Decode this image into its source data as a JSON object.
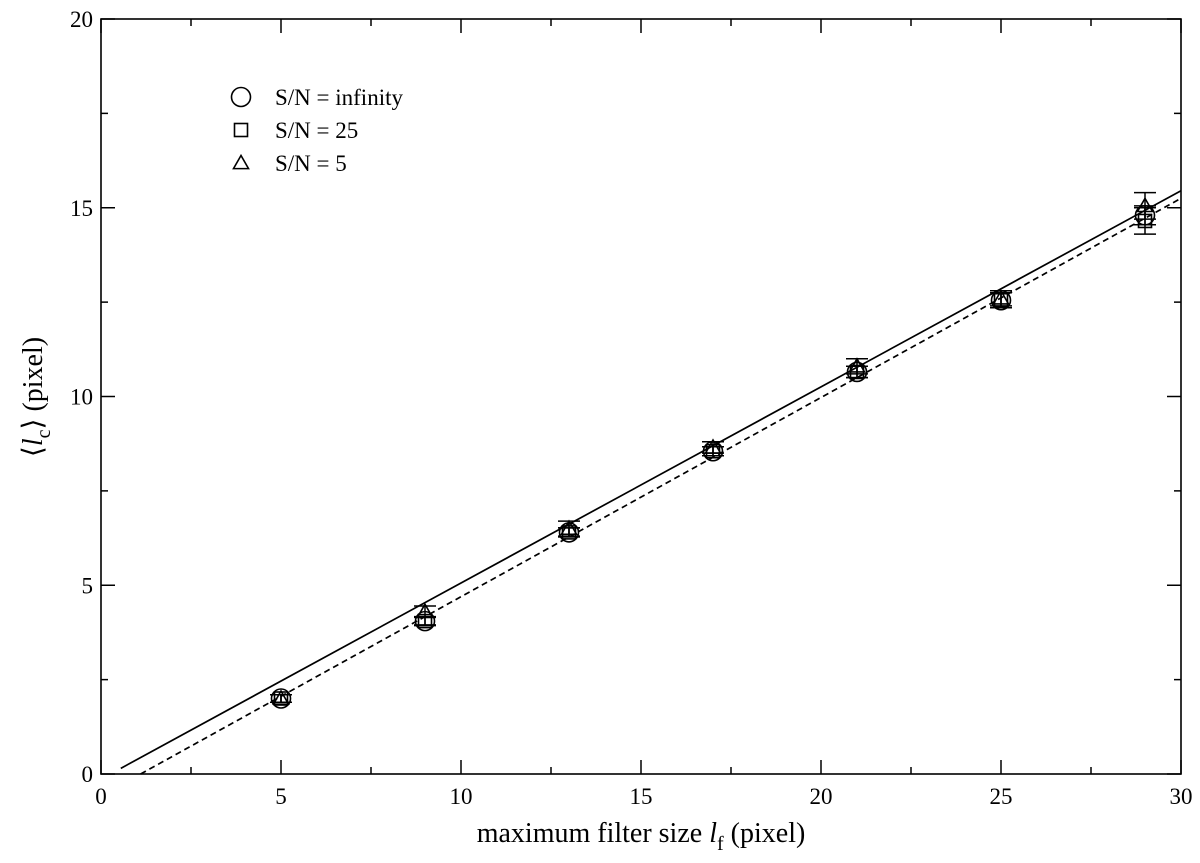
{
  "chart_data": {
    "type": "scatter",
    "xlabel": {
      "main": "maximum filter size ",
      "var": "l",
      "sub": "f",
      "unit": " (pixel)"
    },
    "ylabel": {
      "lbrack": "⟨",
      "var": "l",
      "sub": "c",
      "rbrack": "⟩",
      "unit": "  (pixel)"
    },
    "xlim": [
      0,
      30
    ],
    "ylim": [
      0,
      20
    ],
    "x_ticks": [
      0,
      5,
      10,
      15,
      20,
      25,
      30
    ],
    "y_ticks": [
      0,
      5,
      10,
      15,
      20
    ],
    "x_minor_step": 2.5,
    "y_minor_step": 2.5,
    "grid": false,
    "legend_position": "top-left",
    "series": [
      {
        "name": "S/N = infinity",
        "marker": "circle",
        "points": [
          {
            "x": 5,
            "y": 2.0,
            "err": 0.1
          },
          {
            "x": 9,
            "y": 4.05,
            "err": 0.1
          },
          {
            "x": 13,
            "y": 6.4,
            "err": 0.12
          },
          {
            "x": 17,
            "y": 8.55,
            "err": 0.12
          },
          {
            "x": 21,
            "y": 10.65,
            "err": 0.15
          },
          {
            "x": 25,
            "y": 12.55,
            "err": 0.2
          },
          {
            "x": 29,
            "y": 14.8,
            "err": 0.25
          }
        ]
      },
      {
        "name": "S/N = 25",
        "marker": "square",
        "points": [
          {
            "x": 5,
            "y": 2.0,
            "err": 0.1
          },
          {
            "x": 9,
            "y": 4.05,
            "err": 0.12
          },
          {
            "x": 13,
            "y": 6.4,
            "err": 0.12
          },
          {
            "x": 17,
            "y": 8.55,
            "err": 0.12
          },
          {
            "x": 21,
            "y": 10.65,
            "err": 0.15
          },
          {
            "x": 25,
            "y": 12.55,
            "err": 0.2
          },
          {
            "x": 29,
            "y": 14.65,
            "err": 0.35
          }
        ]
      },
      {
        "name": "S/N = 5",
        "marker": "triangle",
        "points": [
          {
            "x": 5,
            "y": 2.0,
            "err": 0.1
          },
          {
            "x": 9,
            "y": 4.3,
            "err": 0.15
          },
          {
            "x": 13,
            "y": 6.5,
            "err": 0.2
          },
          {
            "x": 17,
            "y": 8.65,
            "err": 0.15
          },
          {
            "x": 21,
            "y": 10.8,
            "err": 0.2
          },
          {
            "x": 25,
            "y": 12.6,
            "err": 0.2
          },
          {
            "x": 29,
            "y": 15.05,
            "err": 0.35
          }
        ]
      }
    ],
    "fit_lines": [
      {
        "style": "solid",
        "x": [
          0.55,
          30
        ],
        "y": [
          0.15,
          15.45
        ]
      },
      {
        "style": "dashed",
        "x": [
          1.1,
          30
        ],
        "y": [
          0.0,
          15.25
        ]
      }
    ]
  }
}
